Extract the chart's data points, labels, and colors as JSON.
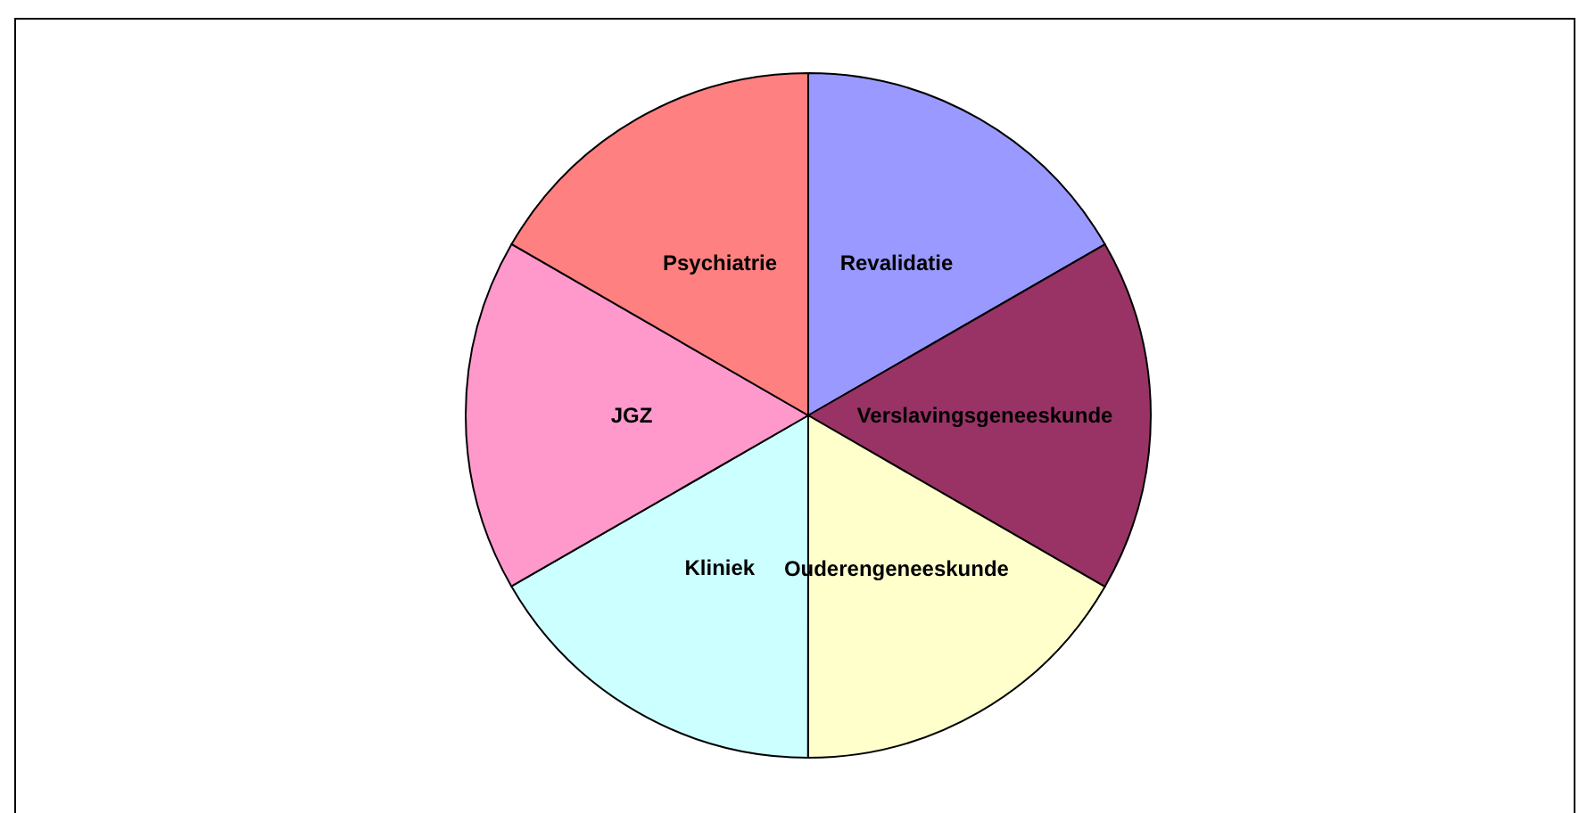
{
  "chart_data": {
    "type": "pie",
    "categories": [
      "Revalidatie",
      "Verslavingsgeneeskunde",
      "Ouderengeneeskunde",
      "Kliniek",
      "JGZ",
      "Psychiatrie"
    ],
    "values": [
      16.67,
      16.67,
      16.67,
      16.67,
      16.66,
      16.66
    ],
    "colors": [
      "#9999ff",
      "#993366",
      "#ffffcc",
      "#ccffff",
      "#ff99cc",
      "#ff8080"
    ],
    "legend": false
  }
}
